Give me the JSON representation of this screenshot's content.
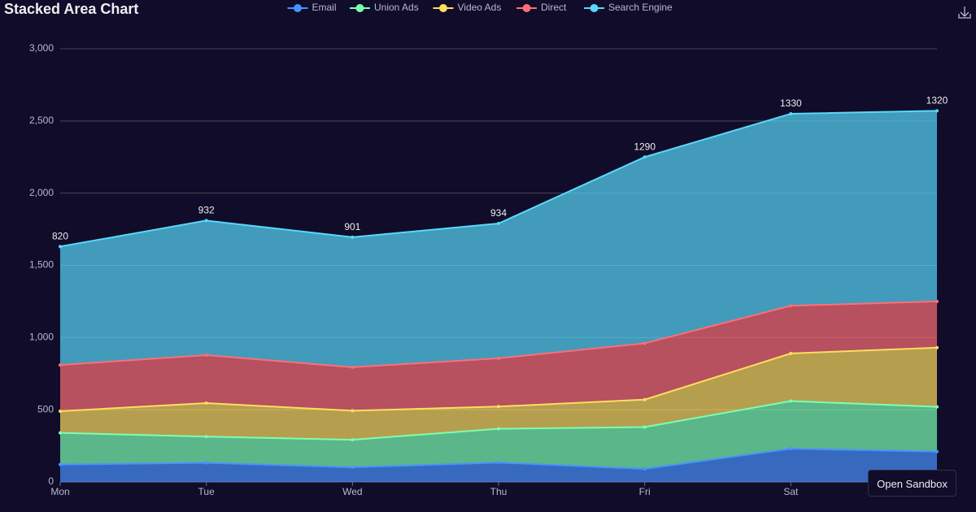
{
  "chart_data": {
    "type": "stacked_area",
    "title": "Stacked Area Chart",
    "categories": [
      "Mon",
      "Tue",
      "Wed",
      "Thu",
      "Fri",
      "Sat",
      null
    ],
    "series": [
      {
        "name": "Email",
        "color": "#4992ff",
        "values": [
          120,
          132,
          101,
          134,
          90,
          230,
          210
        ]
      },
      {
        "name": "Union Ads",
        "color": "#7cffb2",
        "values": [
          220,
          182,
          191,
          234,
          290,
          330,
          310
        ]
      },
      {
        "name": "Video Ads",
        "color": "#fddd60",
        "values": [
          150,
          232,
          201,
          154,
          190,
          330,
          410
        ]
      },
      {
        "name": "Direct",
        "color": "#ff6e76",
        "values": [
          320,
          332,
          301,
          334,
          390,
          330,
          320
        ]
      },
      {
        "name": "Search Engine",
        "color": "#58d9f9",
        "values": [
          820,
          932,
          901,
          934,
          1290,
          1330,
          1320
        ],
        "show_labels": true
      }
    ],
    "ylim": [
      0,
      3000
    ],
    "yticks": [
      0,
      500,
      {
        "value": 1000,
        "label": "1,000"
      },
      {
        "value": 1500,
        "label": "1,500"
      },
      {
        "value": 2000,
        "label": "2,000"
      },
      {
        "value": 2500,
        "label": "2,500"
      },
      {
        "value": 3000,
        "label": "3,000"
      }
    ],
    "grid": true,
    "legend": "top"
  },
  "ui": {
    "button": "Open Sandbox"
  }
}
